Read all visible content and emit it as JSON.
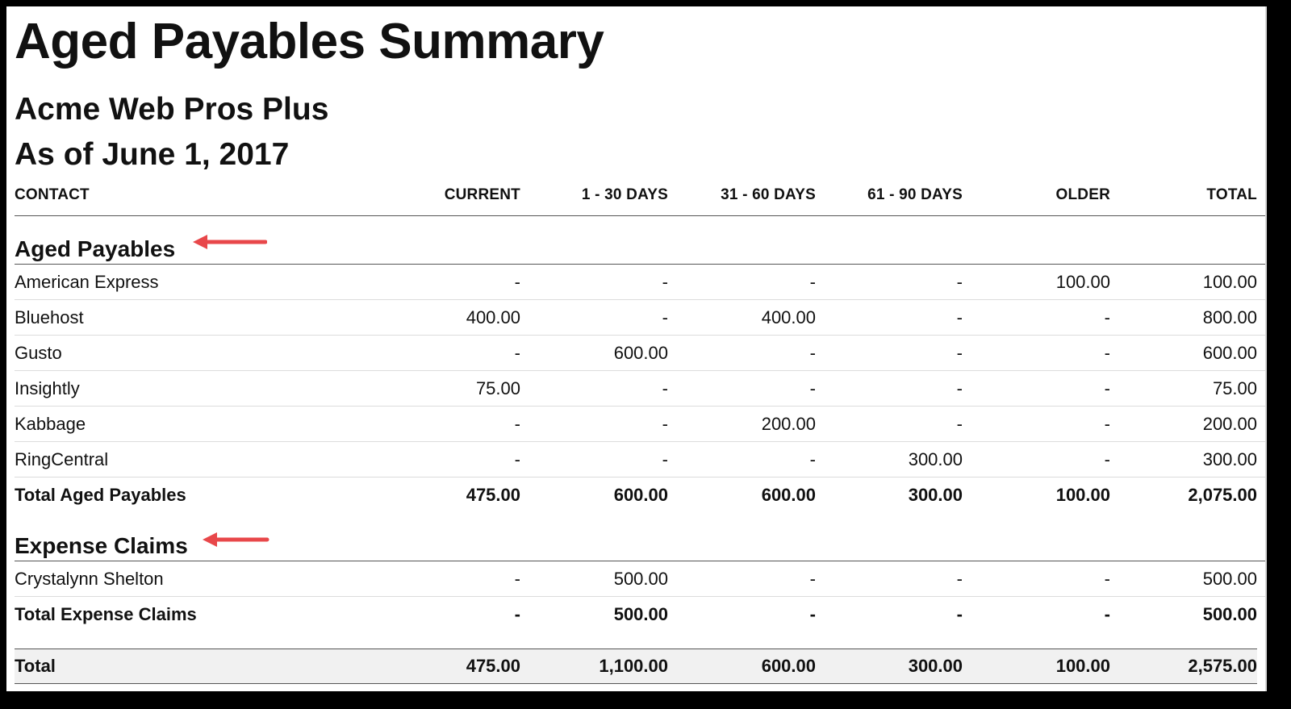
{
  "report": {
    "title": "Aged Payables Summary",
    "company": "Acme Web Pros Plus",
    "as_of": "As of June 1, 2017"
  },
  "columns": {
    "contact": "CONTACT",
    "current": "CURRENT",
    "d1_30": "1 - 30 DAYS",
    "d31_60": "31 - 60 DAYS",
    "d61_90": "61 - 90 DAYS",
    "older": "OLDER",
    "total": "TOTAL"
  },
  "annotation_color": "#e8474a",
  "sections": [
    {
      "label": "Aged Payables",
      "rows": [
        {
          "contact": "American Express",
          "current": "-",
          "d1_30": "-",
          "d31_60": "-",
          "d61_90": "-",
          "older": "100.00",
          "total": "100.00"
        },
        {
          "contact": "Bluehost",
          "current": "400.00",
          "d1_30": "-",
          "d31_60": "400.00",
          "d61_90": "-",
          "older": "-",
          "total": "800.00"
        },
        {
          "contact": "Gusto",
          "current": "-",
          "d1_30": "600.00",
          "d31_60": "-",
          "d61_90": "-",
          "older": "-",
          "total": "600.00"
        },
        {
          "contact": "Insightly",
          "current": "75.00",
          "d1_30": "-",
          "d31_60": "-",
          "d61_90": "-",
          "older": "-",
          "total": "75.00"
        },
        {
          "contact": "Kabbage",
          "current": "-",
          "d1_30": "-",
          "d31_60": "200.00",
          "d61_90": "-",
          "older": "-",
          "total": "200.00"
        },
        {
          "contact": "RingCentral",
          "current": "-",
          "d1_30": "-",
          "d31_60": "-",
          "d61_90": "300.00",
          "older": "-",
          "total": "300.00"
        }
      ],
      "total": {
        "contact": "Total Aged Payables",
        "current": "475.00",
        "d1_30": "600.00",
        "d31_60": "600.00",
        "d61_90": "300.00",
        "older": "100.00",
        "total": "2,075.00"
      }
    },
    {
      "label": "Expense Claims",
      "rows": [
        {
          "contact": "Crystalynn Shelton",
          "current": "-",
          "d1_30": "500.00",
          "d31_60": "-",
          "d61_90": "-",
          "older": "-",
          "total": "500.00"
        }
      ],
      "total": {
        "contact": "Total Expense Claims",
        "current": "-",
        "d1_30": "500.00",
        "d31_60": "-",
        "d61_90": "-",
        "older": "-",
        "total": "500.00"
      }
    }
  ],
  "grand_total": {
    "contact": "Total",
    "current": "475.00",
    "d1_30": "1,100.00",
    "d31_60": "600.00",
    "d61_90": "300.00",
    "older": "100.00",
    "total": "2,575.00"
  }
}
